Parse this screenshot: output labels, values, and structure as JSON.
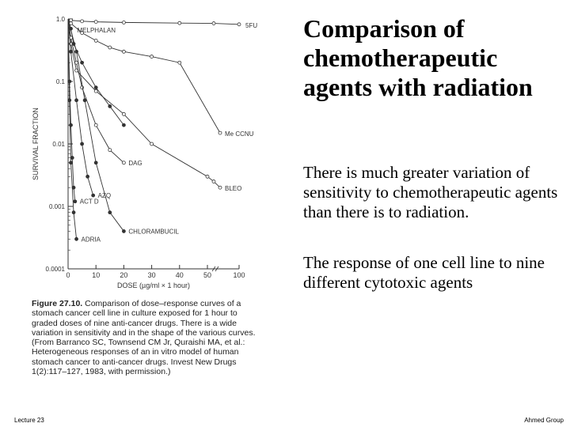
{
  "slide": {
    "title": "Comparison of chemotherapeutic agents with radiation",
    "paragraph1": "There is much greater variation of sensitivity to chemotherapeutic agents than there is to radiation.",
    "paragraph2": "The response of one cell line to nine different cytotoxic agents",
    "footer_left": "Lecture 23",
    "footer_right": "Ahmed Group"
  },
  "figure": {
    "caption_label": "Figure 27.10.",
    "caption_text": "Comparison of dose–response curves of a stomach cancer cell line in culture exposed for 1 hour to graded doses of nine anti-cancer drugs. There is a wide variation in sensitivity and in the shape of the various curves. (From Barranco SC, Townsend CM Jr, Quraishi MA, et al.: Heterogeneous responses of an in vitro model of human stomach cancer to anti-cancer drugs. Invest New Drugs 1(2):117–127, 1983, with permission.)"
  },
  "chart_data": {
    "type": "line",
    "xlabel": "DOSE (µg/ml × 1 hour)",
    "ylabel": "SURVIVAL FRACTION",
    "y_scale": "log",
    "ylim": [
      0.0001,
      1.0
    ],
    "x_ticks": [
      "0",
      "10",
      "20",
      "30",
      "40",
      "50",
      "100"
    ],
    "y_ticks": [
      "1.0",
      "0.1",
      "0.01",
      "0.001",
      "0.0001"
    ],
    "grid": false,
    "series": [
      {
        "name": "5FU",
        "x": [
          0,
          1,
          5,
          10,
          20,
          40,
          60,
          100
        ],
        "y": [
          1.0,
          0.95,
          0.92,
          0.9,
          0.88,
          0.86,
          0.85,
          0.82
        ]
      },
      {
        "name": "Me CCNU",
        "x": [
          0,
          1,
          5,
          10,
          15,
          20,
          30,
          40,
          70
        ],
        "y": [
          1.0,
          0.85,
          0.6,
          0.45,
          0.35,
          0.3,
          0.25,
          0.2,
          0.015
        ]
      },
      {
        "name": "BLEO",
        "x": [
          0,
          1,
          3,
          10,
          20,
          30,
          50,
          60,
          70
        ],
        "y": [
          1.0,
          0.4,
          0.15,
          0.07,
          0.03,
          0.01,
          0.003,
          0.0025,
          0.002
        ]
      },
      {
        "name": "MELPHALAN",
        "x": [
          0,
          1,
          2,
          5,
          10,
          15,
          20
        ],
        "y": [
          1.0,
          0.7,
          0.4,
          0.2,
          0.08,
          0.04,
          0.02
        ]
      },
      {
        "name": "DAG",
        "x": [
          0,
          1,
          3,
          5,
          10,
          15,
          20
        ],
        "y": [
          1.0,
          0.5,
          0.2,
          0.08,
          0.02,
          0.008,
          0.005
        ]
      },
      {
        "name": "AZQ",
        "x": [
          0,
          1,
          3,
          5,
          7,
          9
        ],
        "y": [
          1.0,
          0.3,
          0.05,
          0.01,
          0.003,
          0.0015
        ]
      },
      {
        "name": "ACT D",
        "x": [
          0,
          0.5,
          1,
          1.5,
          2,
          2.5
        ],
        "y": [
          1.0,
          0.1,
          0.02,
          0.006,
          0.002,
          0.0012
        ]
      },
      {
        "name": "CHLORAMBUCIL",
        "x": [
          0,
          3,
          6,
          10,
          15,
          20
        ],
        "y": [
          1.0,
          0.3,
          0.05,
          0.005,
          0.0008,
          0.0004
        ]
      },
      {
        "name": "ADRIA",
        "x": [
          0,
          0.5,
          1,
          2,
          3
        ],
        "y": [
          1.0,
          0.05,
          0.005,
          0.0008,
          0.0003
        ]
      }
    ]
  }
}
